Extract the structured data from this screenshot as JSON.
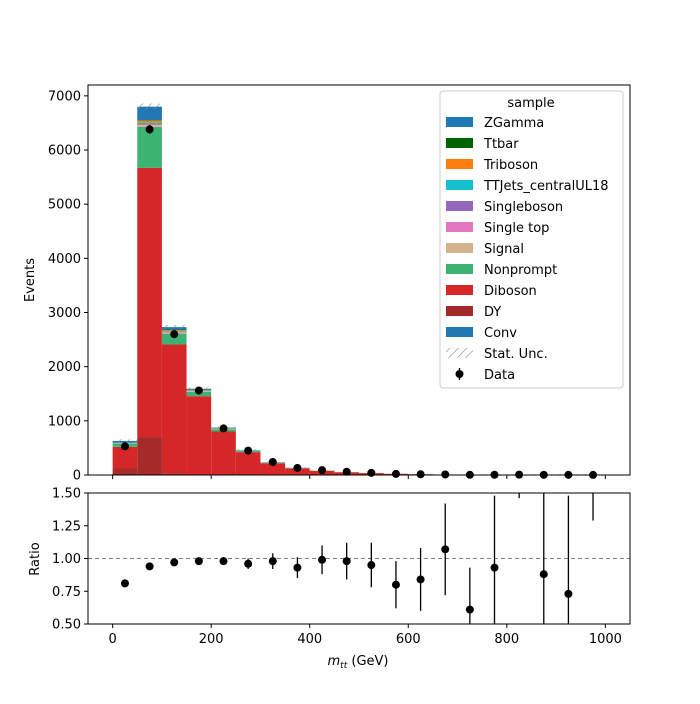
{
  "chart_data": [
    {
      "type": "bar",
      "stacked": true,
      "ylabel": "Events",
      "ylim": [
        0,
        7200
      ],
      "xlim": [
        -50,
        1050
      ],
      "yticks": [
        0,
        1000,
        2000,
        3000,
        4000,
        5000,
        6000,
        7000
      ],
      "bin_edges": [
        0,
        50,
        100,
        150,
        200,
        250,
        300,
        350,
        400,
        450,
        500,
        550,
        600,
        650,
        700,
        750,
        800,
        850,
        900,
        950,
        1000
      ],
      "legend": {
        "title": "sample",
        "placement": "top-right"
      },
      "series": [
        {
          "name": "DY",
          "color": "#a52a2a",
          "values": [
            120,
            700,
            30,
            5,
            3,
            2,
            1,
            1,
            0,
            0,
            0,
            0,
            0,
            0,
            0,
            0,
            0,
            0,
            0,
            0
          ]
        },
        {
          "name": "Diboson",
          "color": "#d62728",
          "values": [
            400,
            4970,
            2380,
            1450,
            800,
            420,
            215,
            120,
            75,
            50,
            35,
            22,
            14,
            9,
            6,
            4,
            3,
            2,
            1,
            1
          ]
        },
        {
          "name": "Nonprompt",
          "color": "#3cb371",
          "values": [
            60,
            760,
            200,
            80,
            40,
            20,
            10,
            6,
            4,
            3,
            2,
            1,
            1,
            0,
            0,
            0,
            0,
            0,
            0,
            0
          ]
        },
        {
          "name": "Signal",
          "color": "#d2b48c",
          "values": [
            5,
            30,
            20,
            10,
            6,
            4,
            2,
            1,
            1,
            1,
            0,
            0,
            0,
            0,
            0,
            0,
            0,
            0,
            0,
            0
          ]
        },
        {
          "name": "Single top",
          "color": "#e377c2",
          "values": [
            2,
            10,
            5,
            3,
            2,
            1,
            1,
            0,
            0,
            0,
            0,
            0,
            0,
            0,
            0,
            0,
            0,
            0,
            0,
            0
          ]
        },
        {
          "name": "Singleboson",
          "color": "#9467bd",
          "values": [
            2,
            10,
            5,
            3,
            2,
            1,
            1,
            0,
            0,
            0,
            0,
            0,
            0,
            0,
            0,
            0,
            0,
            0,
            0,
            0
          ]
        },
        {
          "name": "TTJets_centralUL18",
          "color": "#17becf",
          "values": [
            5,
            20,
            15,
            10,
            6,
            4,
            2,
            1,
            1,
            0,
            0,
            0,
            0,
            0,
            0,
            0,
            0,
            0,
            0,
            0
          ]
        },
        {
          "name": "Triboson",
          "color": "#ff7f0e",
          "values": [
            3,
            40,
            20,
            10,
            5,
            3,
            2,
            1,
            1,
            0,
            0,
            0,
            0,
            0,
            0,
            0,
            0,
            0,
            0,
            0
          ]
        },
        {
          "name": "Ttbar",
          "color": "#006400",
          "values": [
            2,
            10,
            10,
            6,
            4,
            2,
            1,
            1,
            0,
            0,
            0,
            0,
            0,
            0,
            0,
            0,
            0,
            0,
            0,
            0
          ]
        },
        {
          "name": "ZGamma",
          "color": "#1f77b4",
          "values": [
            30,
            250,
            45,
            15,
            8,
            5,
            3,
            2,
            1,
            1,
            0,
            0,
            0,
            0,
            0,
            0,
            0,
            0,
            0,
            0
          ]
        },
        {
          "name": "Conv",
          "color": "#1f77b4",
          "values": [
            0,
            0,
            0,
            0,
            0,
            0,
            0,
            0,
            0,
            0,
            0,
            0,
            0,
            0,
            0,
            0,
            0,
            0,
            0,
            0
          ]
        }
      ],
      "stat_unc": {
        "name": "Stat. Unc.",
        "values": [
          30,
          60,
          40,
          30,
          20,
          15,
          10,
          8,
          6,
          5,
          4,
          3,
          2,
          2,
          1,
          1,
          1,
          1,
          1,
          1
        ]
      },
      "data": {
        "name": "Data",
        "x": [
          25,
          75,
          125,
          175,
          225,
          275,
          325,
          375,
          425,
          475,
          525,
          575,
          625,
          675,
          725,
          775,
          825,
          875,
          925,
          975
        ],
        "y": [
          530,
          6380,
          2600,
          1560,
          860,
          450,
          240,
          130,
          90,
          60,
          40,
          20,
          14,
          10,
          4,
          4,
          7,
          3,
          3,
          2
        ],
        "yerr": [
          25,
          80,
          50,
          40,
          30,
          22,
          16,
          12,
          10,
          8,
          6,
          5,
          4,
          3,
          2,
          2,
          3,
          2,
          2,
          2
        ]
      }
    },
    {
      "type": "scatter",
      "ylabel": "Ratio",
      "xlabel": "m_tt (GeV)",
      "ylim": [
        0.5,
        1.5
      ],
      "xlim": [
        -50,
        1050
      ],
      "xticks": [
        0,
        200,
        400,
        600,
        800,
        1000
      ],
      "yticks": [
        "0.50",
        "0.75",
        "1.00",
        "1.25",
        "1.50"
      ],
      "reference_line": 1.0,
      "points": [
        {
          "x": 25,
          "y": 0.81,
          "err": 0.02
        },
        {
          "x": 75,
          "y": 0.94,
          "err": 0.01
        },
        {
          "x": 125,
          "y": 0.97,
          "err": 0.02
        },
        {
          "x": 175,
          "y": 0.98,
          "err": 0.02
        },
        {
          "x": 225,
          "y": 0.98,
          "err": 0.03
        },
        {
          "x": 275,
          "y": 0.96,
          "err": 0.04
        },
        {
          "x": 325,
          "y": 0.98,
          "err": 0.06
        },
        {
          "x": 375,
          "y": 0.93,
          "err": 0.08
        },
        {
          "x": 425,
          "y": 0.99,
          "err": 0.11
        },
        {
          "x": 475,
          "y": 0.98,
          "err": 0.14
        },
        {
          "x": 525,
          "y": 0.95,
          "err": 0.17
        },
        {
          "x": 575,
          "y": 0.8,
          "err": 0.18
        },
        {
          "x": 625,
          "y": 0.84,
          "err": 0.24
        },
        {
          "x": 675,
          "y": 1.07,
          "err": 0.35
        },
        {
          "x": 725,
          "y": 0.61,
          "err": 0.32
        },
        {
          "x": 775,
          "y": 0.93,
          "err": 0.55
        },
        {
          "x": 825,
          "y": null,
          "err_low": 1.46,
          "err_high": 1.5
        },
        {
          "x": 875,
          "y": 0.88,
          "err": 0.65
        },
        {
          "x": 925,
          "y": 0.73,
          "err": 0.75
        },
        {
          "x": 975,
          "y": null,
          "err_low": 1.29,
          "err_high": 1.5
        }
      ]
    }
  ],
  "labels": {
    "top_ylabel": "Events",
    "bottom_ylabel": "Ratio",
    "xlabel_main": "m",
    "xlabel_sub": "tt",
    "xlabel_unit": " (GeV)",
    "legend_title": "sample"
  },
  "legend_items": [
    {
      "name": "ZGamma",
      "kind": "patch",
      "color": "#1f77b4"
    },
    {
      "name": "Ttbar",
      "kind": "patch",
      "color": "#006400"
    },
    {
      "name": "Triboson",
      "kind": "patch",
      "color": "#ff7f0e"
    },
    {
      "name": "TTJets_centralUL18",
      "kind": "patch",
      "color": "#17becf"
    },
    {
      "name": "Singleboson",
      "kind": "patch",
      "color": "#9467bd"
    },
    {
      "name": "Single top",
      "kind": "patch",
      "color": "#e377c2"
    },
    {
      "name": "Signal",
      "kind": "patch",
      "color": "#d2b48c"
    },
    {
      "name": "Nonprompt",
      "kind": "patch",
      "color": "#3cb371"
    },
    {
      "name": "Diboson",
      "kind": "patch",
      "color": "#d62728"
    },
    {
      "name": "DY",
      "kind": "patch",
      "color": "#a52a2a"
    },
    {
      "name": "Conv",
      "kind": "patch",
      "color": "#1f77b4"
    },
    {
      "name": "Stat. Unc.",
      "kind": "hatch",
      "color": "#888888"
    },
    {
      "name": "Data",
      "kind": "marker",
      "color": "#000000"
    }
  ]
}
